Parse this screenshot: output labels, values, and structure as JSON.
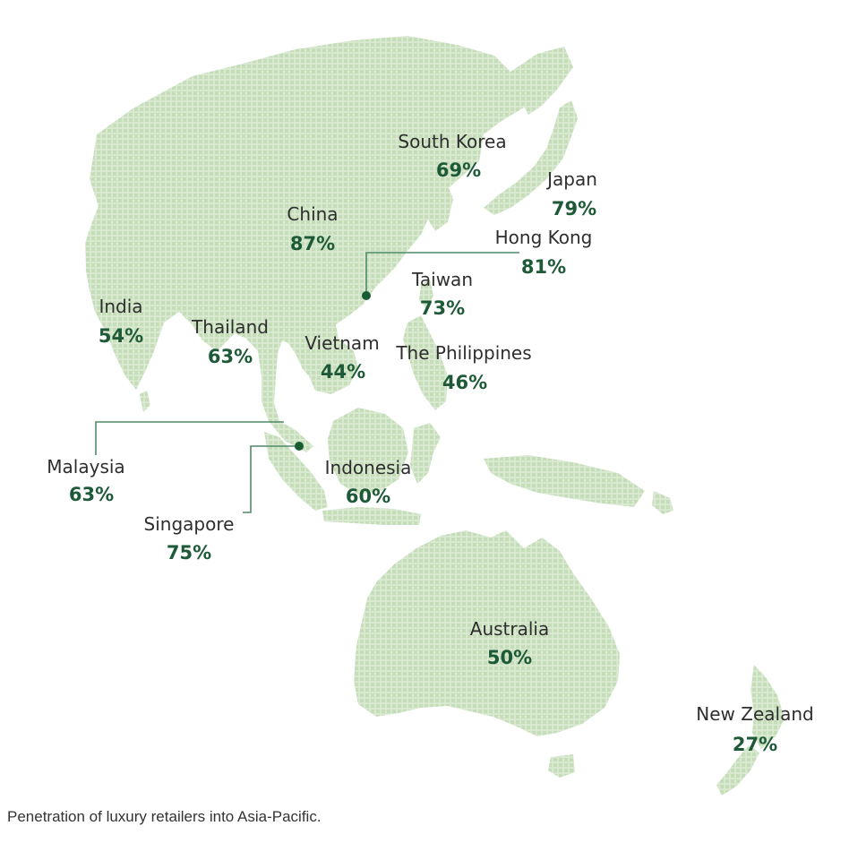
{
  "colors": {
    "land": "#d9ead1",
    "land_dot": "#c6ddba",
    "value": "#1e5a38",
    "leader": "#4f8a69",
    "marker": "#1a5c31"
  },
  "regions": [
    {
      "id": "south-korea",
      "label": "South Korea",
      "value": "69%"
    },
    {
      "id": "japan",
      "label": "Japan",
      "value": "79%"
    },
    {
      "id": "china",
      "label": "China",
      "value": "87%"
    },
    {
      "id": "hong-kong",
      "label": "Hong Kong",
      "value": "81%"
    },
    {
      "id": "taiwan",
      "label": "Taiwan",
      "value": "73%"
    },
    {
      "id": "india",
      "label": "India",
      "value": "54%"
    },
    {
      "id": "thailand",
      "label": "Thailand",
      "value": "63%"
    },
    {
      "id": "vietnam",
      "label": "Vietnam",
      "value": "44%"
    },
    {
      "id": "philippines",
      "label": "The Philippines",
      "value": "46%"
    },
    {
      "id": "malaysia",
      "label": "Malaysia",
      "value": "63%"
    },
    {
      "id": "indonesia",
      "label": "Indonesia",
      "value": "60%"
    },
    {
      "id": "singapore",
      "label": "Singapore",
      "value": "75%"
    },
    {
      "id": "australia",
      "label": "Australia",
      "value": "50%"
    },
    {
      "id": "new-zealand",
      "label": "New Zealand",
      "value": "27%"
    }
  ],
  "caption": "Penetration of luxury retailers into Asia-Pacific."
}
